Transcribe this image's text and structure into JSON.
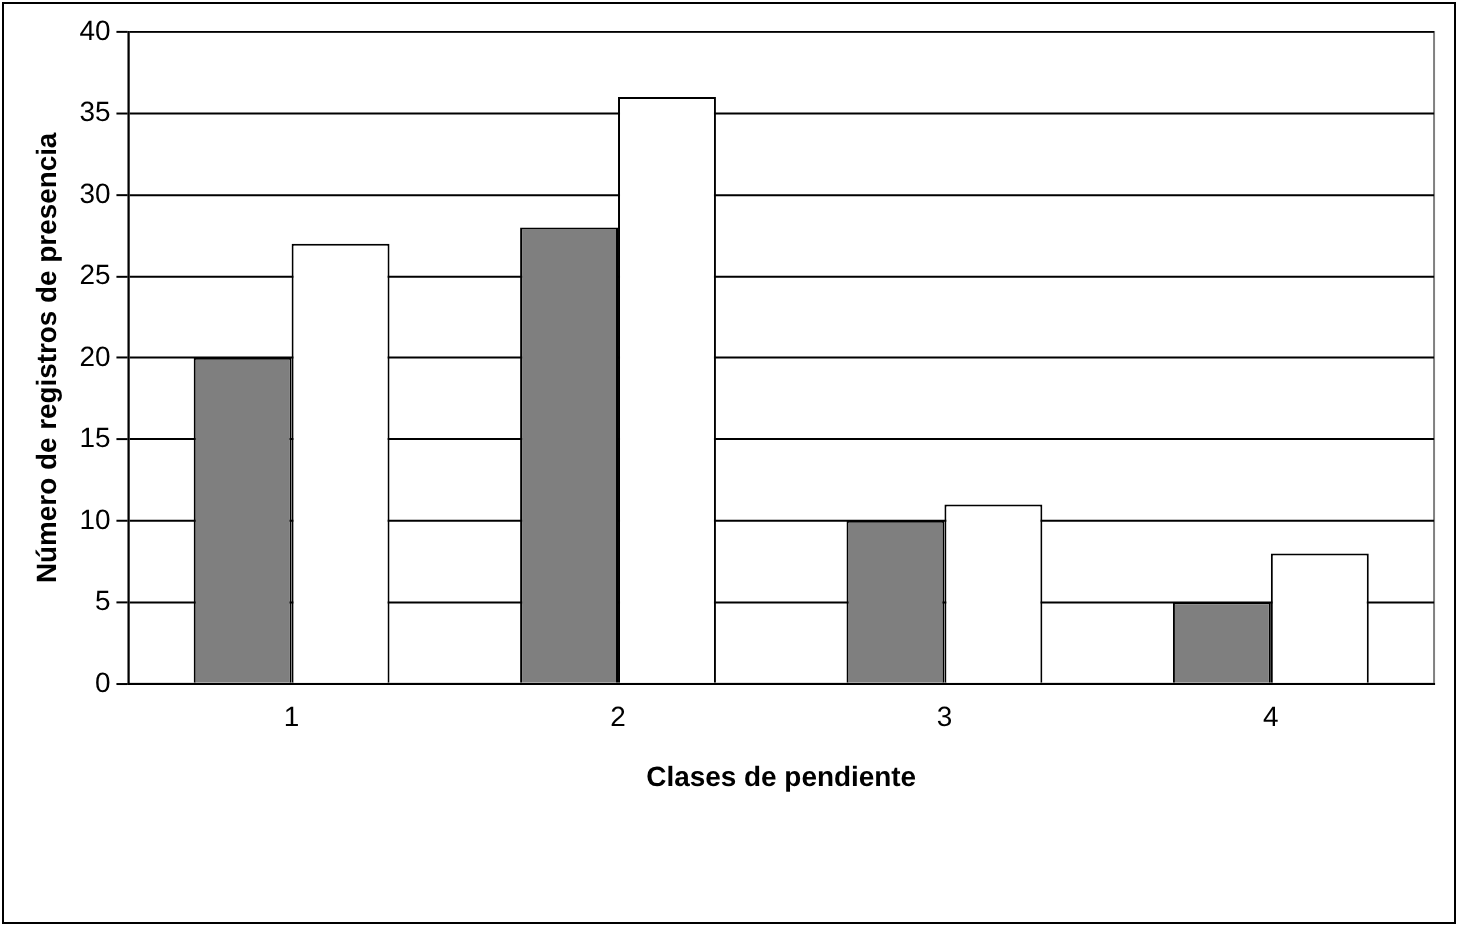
{
  "chart_data": {
    "type": "bar",
    "xlabel": "Clases de pendiente",
    "ylabel": "Número de registros de presencia",
    "categories": [
      "1",
      "2",
      "3",
      "4"
    ],
    "series": [
      {
        "color": "#7f7f7f",
        "values": [
          20,
          28,
          10,
          5
        ]
      },
      {
        "color": "#ffffff",
        "values": [
          27,
          36,
          11,
          8
        ]
      }
    ],
    "ylim": [
      0,
      40
    ],
    "yticks": [
      0,
      5,
      10,
      15,
      20,
      25,
      30,
      35,
      40
    ],
    "grid": "y",
    "legend": false
  }
}
